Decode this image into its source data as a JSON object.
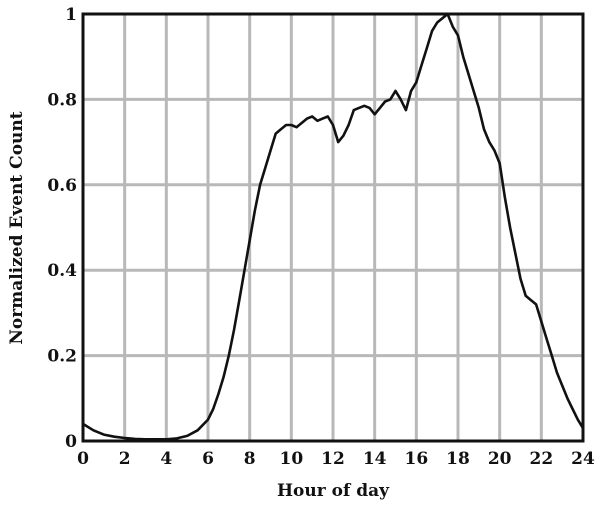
{
  "chart_data": {
    "type": "line",
    "title": "",
    "xlabel": "Hour of day",
    "ylabel": "Normalized Event Count",
    "xlim": [
      0,
      24
    ],
    "ylim": [
      0,
      1
    ],
    "x_ticks": [
      0,
      2,
      4,
      6,
      8,
      10,
      12,
      14,
      16,
      18,
      20,
      22,
      24
    ],
    "x_tick_labels": [
      "0",
      "2",
      "4",
      "6",
      "8",
      "10",
      "12",
      "14",
      "16",
      "18",
      "20",
      "22",
      "24"
    ],
    "y_ticks": [
      0,
      0.2,
      0.4,
      0.6,
      0.8,
      1
    ],
    "y_tick_labels": [
      "0",
      "0.2",
      "0.4",
      "0.6",
      "0.8",
      "1"
    ],
    "grid": true,
    "colors": {
      "line": "#111111",
      "grid": "#b8b8b8",
      "frame": "#111111"
    },
    "series": [
      {
        "x": [
          0,
          0.5,
          1,
          1.5,
          2,
          2.5,
          3,
          3.5,
          4,
          4.5,
          5,
          5.5,
          6,
          6.25,
          6.5,
          6.75,
          7,
          7.25,
          7.5,
          7.75,
          8,
          8.25,
          8.5,
          8.75,
          9,
          9.25,
          9.5,
          9.75,
          10,
          10.25,
          10.5,
          10.75,
          11,
          11.25,
          11.5,
          11.75,
          12,
          12.25,
          12.5,
          12.75,
          13,
          13.25,
          13.5,
          13.75,
          14,
          14.25,
          14.5,
          14.75,
          15,
          15.25,
          15.5,
          15.75,
          16,
          16.25,
          16.5,
          16.75,
          17,
          17.25,
          17.5,
          17.75,
          18,
          18.25,
          18.5,
          18.75,
          19,
          19.25,
          19.5,
          19.75,
          20,
          20.25,
          20.5,
          20.75,
          21,
          21.25,
          21.5,
          21.75,
          22,
          22.25,
          22.5,
          22.75,
          23,
          23.25,
          23.5,
          23.75,
          24
        ],
        "y": [
          0.04,
          0.025,
          0.015,
          0.01,
          0.007,
          0.005,
          0.004,
          0.004,
          0.004,
          0.006,
          0.012,
          0.025,
          0.05,
          0.075,
          0.11,
          0.15,
          0.2,
          0.26,
          0.33,
          0.4,
          0.47,
          0.54,
          0.6,
          0.64,
          0.68,
          0.72,
          0.73,
          0.74,
          0.74,
          0.735,
          0.745,
          0.755,
          0.76,
          0.75,
          0.755,
          0.76,
          0.74,
          0.7,
          0.715,
          0.74,
          0.775,
          0.78,
          0.785,
          0.78,
          0.765,
          0.78,
          0.795,
          0.8,
          0.82,
          0.8,
          0.775,
          0.82,
          0.84,
          0.88,
          0.92,
          0.96,
          0.98,
          0.99,
          1.0,
          0.97,
          0.95,
          0.9,
          0.86,
          0.82,
          0.78,
          0.73,
          0.7,
          0.68,
          0.65,
          0.57,
          0.5,
          0.44,
          0.38,
          0.34,
          0.33,
          0.32,
          0.28,
          0.24,
          0.2,
          0.16,
          0.13,
          0.1,
          0.075,
          0.05,
          0.03
        ]
      }
    ]
  }
}
